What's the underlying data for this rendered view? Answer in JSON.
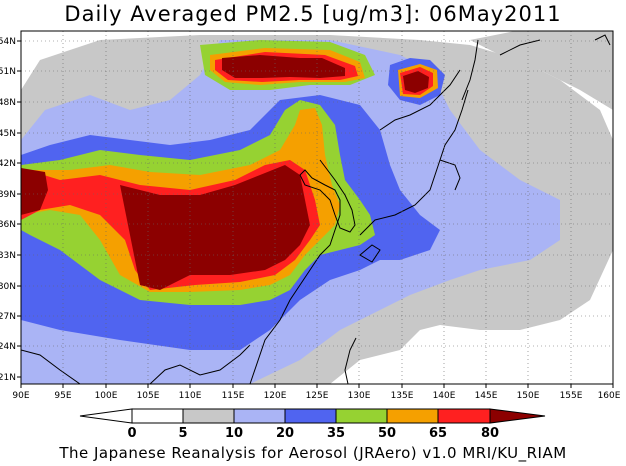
{
  "title": "Daily Averaged PM2.5 [ug/m3]: 06May2011",
  "footer": "The Japanese Reanalysis for Aerosol (JRAero) v1.0 MRI/KU_RIAM",
  "map": {
    "lon_range": [
      90,
      160
    ],
    "lat_range": [
      20,
      55
    ],
    "lon_ticks": [
      "90E",
      "95E",
      "100E",
      "105E",
      "110E",
      "115E",
      "120E",
      "125E",
      "130E",
      "135E",
      "140E",
      "145E",
      "150E",
      "155E",
      "160E"
    ],
    "lat_ticks": [
      "21N",
      "24N",
      "27N",
      "30N",
      "33N",
      "36N",
      "39N",
      "42N",
      "45N",
      "48N",
      "51N",
      "54N"
    ],
    "gridlines": "dotted"
  },
  "colorbar": {
    "labels": [
      "0",
      "5",
      "10",
      "20",
      "35",
      "50",
      "65",
      "80"
    ],
    "colors": [
      "#ffffff",
      "#c8c8c8",
      "#aab4f5",
      "#5064f0",
      "#96d232",
      "#f5a000",
      "#ff2020",
      "#8c0000"
    ]
  }
}
